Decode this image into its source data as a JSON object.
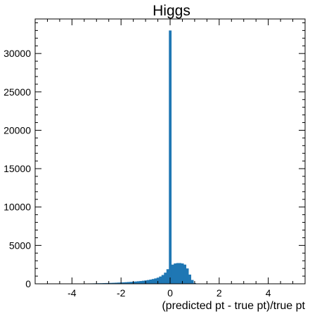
{
  "chart_data": {
    "type": "bar",
    "title": "Higgs",
    "xlabel": "(predicted pt - true pt)/true pt",
    "ylabel": "",
    "xlim": [
      -5.5,
      5.5
    ],
    "ylim": [
      0,
      34500
    ],
    "xticks": [
      -4,
      -2,
      0,
      2,
      4
    ],
    "yticks": [
      0,
      5000,
      10000,
      15000,
      20000,
      25000,
      30000
    ],
    "grid": false,
    "color": "#1f77b4",
    "bin_width": 0.1,
    "bins": [
      {
        "x": -4.5,
        "value": 10
      },
      {
        "x": -4.4,
        "value": 10
      },
      {
        "x": -4.3,
        "value": 15
      },
      {
        "x": -4.2,
        "value": 15
      },
      {
        "x": -4.1,
        "value": 20
      },
      {
        "x": -4.0,
        "value": 20
      },
      {
        "x": -3.9,
        "value": 25
      },
      {
        "x": -3.8,
        "value": 30
      },
      {
        "x": -3.7,
        "value": 30
      },
      {
        "x": -3.6,
        "value": 35
      },
      {
        "x": -3.5,
        "value": 40
      },
      {
        "x": -3.4,
        "value": 45
      },
      {
        "x": -3.3,
        "value": 50
      },
      {
        "x": -3.2,
        "value": 55
      },
      {
        "x": -3.1,
        "value": 60
      },
      {
        "x": -3.0,
        "value": 70
      },
      {
        "x": -2.9,
        "value": 75
      },
      {
        "x": -2.8,
        "value": 80
      },
      {
        "x": -2.7,
        "value": 90
      },
      {
        "x": -2.6,
        "value": 100
      },
      {
        "x": -2.5,
        "value": 110
      },
      {
        "x": -2.4,
        "value": 120
      },
      {
        "x": -2.3,
        "value": 130
      },
      {
        "x": -2.2,
        "value": 145
      },
      {
        "x": -2.1,
        "value": 160
      },
      {
        "x": -2.0,
        "value": 175
      },
      {
        "x": -1.9,
        "value": 190
      },
      {
        "x": -1.8,
        "value": 210
      },
      {
        "x": -1.7,
        "value": 230
      },
      {
        "x": -1.6,
        "value": 250
      },
      {
        "x": -1.5,
        "value": 275
      },
      {
        "x": -1.4,
        "value": 300
      },
      {
        "x": -1.3,
        "value": 330
      },
      {
        "x": -1.2,
        "value": 360
      },
      {
        "x": -1.1,
        "value": 400
      },
      {
        "x": -1.0,
        "value": 440
      },
      {
        "x": -0.9,
        "value": 490
      },
      {
        "x": -0.8,
        "value": 550
      },
      {
        "x": -0.7,
        "value": 620
      },
      {
        "x": -0.6,
        "value": 700
      },
      {
        "x": -0.5,
        "value": 800
      },
      {
        "x": -0.4,
        "value": 950
      },
      {
        "x": -0.3,
        "value": 1150
      },
      {
        "x": -0.2,
        "value": 1450
      },
      {
        "x": -0.1,
        "value": 1900
      },
      {
        "x": 0.0,
        "value": 33000
      },
      {
        "x": 0.1,
        "value": 2500
      },
      {
        "x": 0.2,
        "value": 2650
      },
      {
        "x": 0.3,
        "value": 2700
      },
      {
        "x": 0.4,
        "value": 2700
      },
      {
        "x": 0.5,
        "value": 2650
      },
      {
        "x": 0.6,
        "value": 2500
      },
      {
        "x": 0.7,
        "value": 2000
      },
      {
        "x": 0.8,
        "value": 1200
      },
      {
        "x": 0.9,
        "value": 500
      },
      {
        "x": 1.0,
        "value": 100
      },
      {
        "x": 1.1,
        "value": 20
      },
      {
        "x": 1.2,
        "value": 10
      }
    ]
  }
}
